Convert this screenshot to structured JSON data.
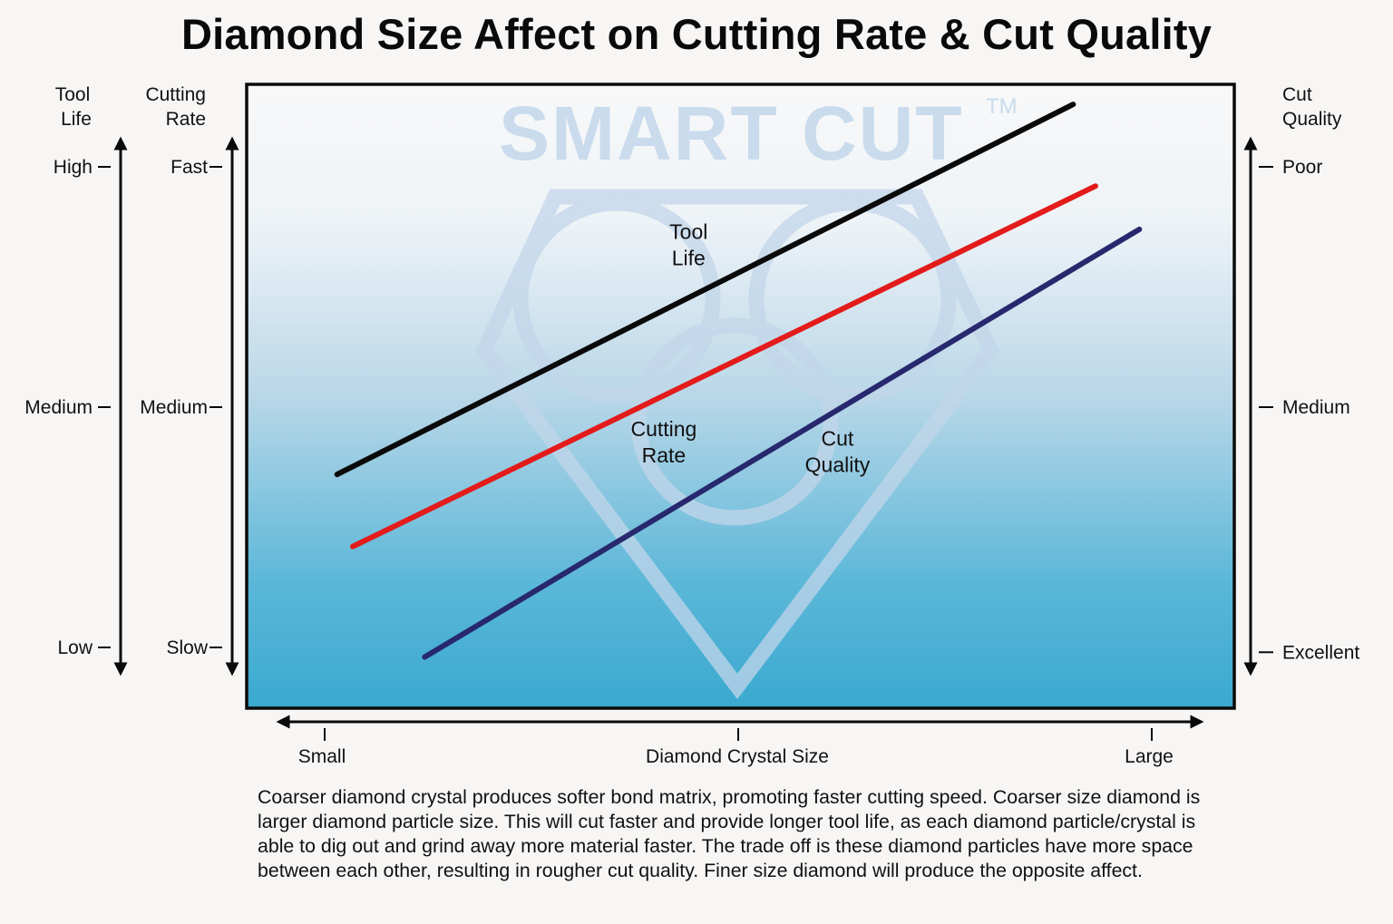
{
  "title": "Diamond Size Affect on Cutting Rate & Cut Quality",
  "watermark": {
    "text": "SMART CUT",
    "trademark": "TM"
  },
  "description": "Coarser diamond crystal produces softer bond matrix, promoting faster cutting speed. Coarser size diamond is larger diamond particle size. This will cut faster and provide longer tool life, as each diamond particle/crystal is able to dig out and grind away more material faster. The trade off is these diamond particles have more space between each other, resulting in rougher cut quality. Finer size diamond will produce the opposite affect.",
  "colors": {
    "tool_life": "#0a0a0a",
    "cutting_rate": "#e31b1b",
    "cut_quality": "#27286e",
    "bg_top": "#f8f8f8",
    "bg_bottom": "#3aa9cf",
    "watermark": "#c5d8ea"
  },
  "chart_data": {
    "type": "line",
    "title": "Diamond Size Affect on Cutting Rate & Cut Quality",
    "xlabel": "Diamond Crystal Size",
    "x_ticks": [
      {
        "value": 0,
        "label": "Small"
      },
      {
        "value": 0.5,
        "label": ""
      },
      {
        "value": 1,
        "label": "Large"
      }
    ],
    "xlim": [
      0,
      1
    ],
    "ylim": [
      0,
      1
    ],
    "y_axes": [
      {
        "name": "tool-life",
        "title": [
          "Tool",
          "Life"
        ],
        "side": "left-outer",
        "ticks": [
          {
            "value": 1,
            "label": "High"
          },
          {
            "value": 0.5,
            "label": "Medium"
          },
          {
            "value": 0,
            "label": "Low"
          }
        ]
      },
      {
        "name": "cutting-rate",
        "title": [
          "Cutting",
          "Rate"
        ],
        "side": "left-inner",
        "ticks": [
          {
            "value": 1,
            "label": "Fast"
          },
          {
            "value": 0.5,
            "label": "Medium"
          },
          {
            "value": 0,
            "label": "Slow"
          }
        ]
      },
      {
        "name": "cut-quality",
        "title": [
          "Cut",
          "Quality"
        ],
        "side": "right",
        "ticks": [
          {
            "value": 1,
            "label": "Poor"
          },
          {
            "value": 0.5,
            "label": "Medium"
          },
          {
            "value": -0.01,
            "label": "Excellent"
          }
        ]
      }
    ],
    "series": [
      {
        "name": "Tool Life",
        "label_lines": [
          "Tool",
          "Life"
        ],
        "color": "#0a0a0a",
        "x": [
          0.015,
          0.905
        ],
        "y": [
          0.36,
          1.13
        ],
        "label_at": {
          "x": 0.44,
          "y": 0.85
        }
      },
      {
        "name": "Cutting Rate",
        "label_lines": [
          "Cutting",
          "Rate"
        ],
        "color": "#e31b1b",
        "x": [
          0.034,
          0.932
        ],
        "y": [
          0.21,
          0.96
        ],
        "label_at": {
          "x": 0.41,
          "y": 0.44
        }
      },
      {
        "name": "Cut Quality",
        "label_lines": [
          "Cut",
          "Quality"
        ],
        "color": "#27286e",
        "x": [
          0.121,
          0.985
        ],
        "y": [
          -0.02,
          0.87
        ],
        "label_at": {
          "x": 0.62,
          "y": 0.42
        }
      }
    ],
    "grid": false,
    "legend": "none (inline labels)"
  }
}
